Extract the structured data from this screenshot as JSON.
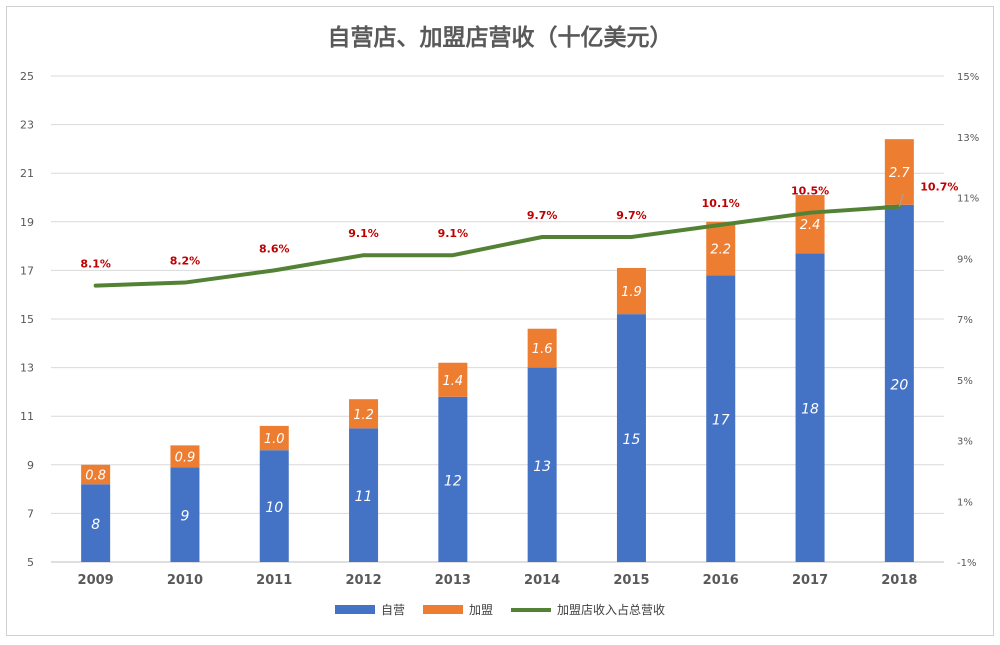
{
  "chart_data": {
    "type": "bar",
    "title": "自营店、加盟店营收（十亿美元）",
    "categories": [
      "2009",
      "2010",
      "2011",
      "2012",
      "2013",
      "2014",
      "2015",
      "2016",
      "2017",
      "2018"
    ],
    "series": [
      {
        "name": "自营",
        "type": "bar",
        "stacked": true,
        "color": "#4472C4",
        "values": [
          8,
          9,
          10,
          11,
          12,
          13,
          15,
          17,
          18,
          20
        ],
        "labels": [
          "8",
          "9",
          "10",
          "11",
          "12",
          "13",
          "15",
          "17",
          "18",
          "20"
        ],
        "plotted": [
          8.2,
          8.9,
          9.6,
          10.5,
          11.8,
          13.0,
          15.2,
          16.8,
          17.7,
          19.7
        ]
      },
      {
        "name": "加盟",
        "type": "bar",
        "stacked": true,
        "color": "#ED7D31",
        "values": [
          0.8,
          0.9,
          1.0,
          1.2,
          1.4,
          1.6,
          1.9,
          2.2,
          2.4,
          2.7
        ],
        "labels": [
          "0.8",
          "0.9",
          "1.0",
          "1.2",
          "1.4",
          "1.6",
          "1.9",
          "2.2",
          "2.4",
          "2.7"
        ]
      },
      {
        "name": "加盟店收入占总营收",
        "type": "line",
        "axis": "secondary",
        "color": "#548235",
        "values": [
          8.1,
          8.2,
          8.6,
          9.1,
          9.1,
          9.7,
          9.7,
          10.1,
          10.5,
          10.7
        ],
        "labels": [
          "8.1%",
          "8.2%",
          "8.6%",
          "9.1%",
          "9.1%",
          "9.7%",
          "9.7%",
          "10.1%",
          "10.5%",
          "10.7%"
        ]
      }
    ],
    "y_primary": {
      "min": 5,
      "max": 25,
      "ticks": [
        "5",
        "7",
        "9",
        "11",
        "13",
        "15",
        "17",
        "19",
        "21",
        "23",
        "25"
      ]
    },
    "y_secondary": {
      "min": -1,
      "max": 15,
      "ticks": [
        "-1%",
        "1%",
        "3%",
        "5%",
        "7%",
        "9%",
        "11%",
        "13%",
        "15%"
      ]
    },
    "grid": true,
    "legend_position": "bottom",
    "label_color": "#C00000"
  }
}
